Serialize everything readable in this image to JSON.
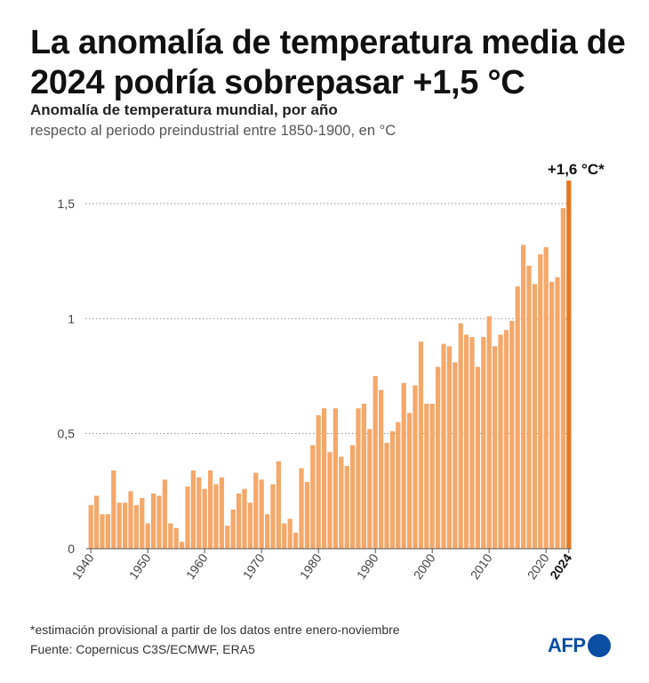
{
  "title": "La anomalía de temperatura media de 2024 podría sobrepasar +1,5 °C",
  "subtitle": "Anomalía de temperatura mundial, por año",
  "subtitle2": "respecto al periodo preindustrial entre 1850-1900, en °C",
  "footnote": "*estimación provisional a partir de los datos entre enero-noviembre",
  "source": "Fuente: Copernicus C3S/ECMWF, ERA5",
  "logo": "AFP",
  "colors": {
    "bar": "#f5a86a",
    "highlight": "#e87722",
    "grid": "#777777",
    "logo": "#0b4ea2"
  },
  "chart_data": {
    "type": "bar",
    "x": [
      1940,
      1941,
      1942,
      1943,
      1944,
      1945,
      1946,
      1947,
      1948,
      1949,
      1950,
      1951,
      1952,
      1953,
      1954,
      1955,
      1956,
      1957,
      1958,
      1959,
      1960,
      1961,
      1962,
      1963,
      1964,
      1965,
      1966,
      1967,
      1968,
      1969,
      1970,
      1971,
      1972,
      1973,
      1974,
      1975,
      1976,
      1977,
      1978,
      1979,
      1980,
      1981,
      1982,
      1983,
      1984,
      1985,
      1986,
      1987,
      1988,
      1989,
      1990,
      1991,
      1992,
      1993,
      1994,
      1995,
      1996,
      1997,
      1998,
      1999,
      2000,
      2001,
      2002,
      2003,
      2004,
      2005,
      2006,
      2007,
      2008,
      2009,
      2010,
      2011,
      2012,
      2013,
      2014,
      2015,
      2016,
      2017,
      2018,
      2019,
      2020,
      2021,
      2022,
      2023,
      2024
    ],
    "values": [
      0.19,
      0.23,
      0.15,
      0.15,
      0.34,
      0.2,
      0.2,
      0.25,
      0.19,
      0.22,
      0.11,
      0.24,
      0.23,
      0.3,
      0.11,
      0.09,
      0.03,
      0.27,
      0.34,
      0.31,
      0.26,
      0.34,
      0.28,
      0.31,
      0.1,
      0.17,
      0.24,
      0.26,
      0.2,
      0.33,
      0.3,
      0.15,
      0.28,
      0.38,
      0.11,
      0.13,
      0.07,
      0.35,
      0.29,
      0.45,
      0.58,
      0.61,
      0.42,
      0.61,
      0.4,
      0.36,
      0.45,
      0.61,
      0.63,
      0.52,
      0.75,
      0.69,
      0.46,
      0.51,
      0.55,
      0.72,
      0.59,
      0.71,
      0.9,
      0.63,
      0.63,
      0.79,
      0.89,
      0.88,
      0.81,
      0.98,
      0.93,
      0.92,
      0.79,
      0.92,
      1.01,
      0.88,
      0.93,
      0.95,
      0.99,
      1.14,
      1.32,
      1.23,
      1.15,
      1.28,
      1.31,
      1.16,
      1.18,
      1.48,
      1.6
    ],
    "yticks": [
      0,
      0.5,
      1,
      1.5
    ],
    "ytick_labels": [
      "0",
      "0,5",
      "1",
      "1,5"
    ],
    "xticks": [
      1940,
      1950,
      1960,
      1970,
      1980,
      1990,
      2000,
      2010,
      2020,
      2024
    ],
    "xtick_labels": [
      "1940",
      "1950",
      "1960",
      "1970",
      "1980",
      "1990",
      "2000",
      "2010",
      "2020",
      "2024"
    ],
    "ylim": [
      0,
      1.6
    ],
    "highlight_year": 2024,
    "annotation": "+1,6 °C*",
    "grid": true
  }
}
